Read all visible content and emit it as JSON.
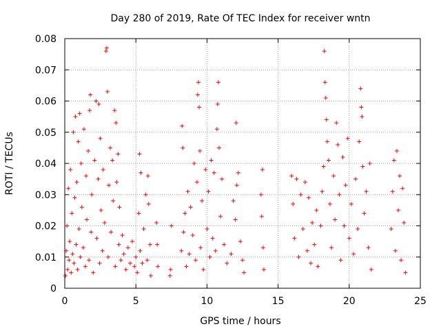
{
  "chart_data": {
    "type": "scatter",
    "title": "Day 280 of 2019, Rate Of TEC Index for receiver wntn",
    "xlabel": "GPS time / hours",
    "ylabel": "ROTI / TECUs",
    "xlim": [
      0,
      25
    ],
    "ylim": [
      0,
      0.08
    ],
    "x_ticks": [
      "0",
      "5",
      "10",
      "15",
      "20",
      "25"
    ],
    "y_ticks": [
      "0",
      "0.01",
      "0.02",
      "0.03",
      "0.04",
      "0.05",
      "0.06",
      "0.07",
      "0.08"
    ],
    "grid": true,
    "marker": "+",
    "color": "#ff0000",
    "series": [
      {
        "values": [
          [
            0.05,
            0.004
          ],
          [
            0.1,
            0.012
          ],
          [
            0.15,
            0.02
          ],
          [
            0.2,
            0.006
          ],
          [
            0.25,
            0.032
          ],
          [
            0.3,
            0.009
          ],
          [
            0.35,
            0.015
          ],
          [
            0.4,
            0.038
          ],
          [
            0.45,
            0.005
          ],
          [
            0.5,
            0.024
          ],
          [
            0.55,
            0.011
          ],
          [
            0.6,
            0.05
          ],
          [
            0.65,
            0.008
          ],
          [
            0.7,
            0.029
          ],
          [
            0.75,
            0.055
          ],
          [
            0.8,
            0.014
          ],
          [
            0.85,
            0.034
          ],
          [
            0.9,
            0.006
          ],
          [
            0.95,
            0.047
          ],
          [
            1.0,
            0.019
          ],
          [
            1.05,
            0.056
          ],
          [
            1.1,
            0.01
          ],
          [
            1.15,
            0.04
          ],
          [
            1.2,
            0.026
          ],
          [
            1.3,
            0.013
          ],
          [
            1.35,
            0.051
          ],
          [
            1.45,
            0.007
          ],
          [
            1.5,
            0.036
          ],
          [
            1.55,
            0.022
          ],
          [
            1.65,
            0.044
          ],
          [
            1.7,
            0.009
          ],
          [
            1.75,
            0.057
          ],
          [
            1.8,
            0.062
          ],
          [
            1.85,
            0.018
          ],
          [
            1.9,
            0.03
          ],
          [
            2.0,
            0.005
          ],
          [
            2.1,
            0.041
          ],
          [
            2.2,
            0.06
          ],
          [
            2.25,
            0.016
          ],
          [
            2.35,
            0.035
          ],
          [
            2.4,
            0.059
          ],
          [
            2.45,
            0.008
          ],
          [
            2.5,
            0.048
          ],
          [
            2.55,
            0.025
          ],
          [
            2.65,
            0.012
          ],
          [
            2.7,
            0.038
          ],
          [
            2.8,
            0.021
          ],
          [
            2.9,
            0.076
          ],
          [
            2.95,
            0.077
          ],
          [
            3.0,
            0.063
          ],
          [
            3.05,
            0.01
          ],
          [
            3.1,
            0.033
          ],
          [
            3.2,
            0.045
          ],
          [
            3.25,
            0.018
          ],
          [
            3.35,
            0.041
          ],
          [
            3.4,
            0.028
          ],
          [
            3.5,
            0.057
          ],
          [
            3.55,
            0.007
          ],
          [
            3.6,
            0.053
          ],
          [
            3.65,
            0.034
          ],
          [
            3.75,
            0.043
          ],
          [
            3.8,
            0.014
          ],
          [
            3.85,
            0.026
          ],
          [
            3.95,
            0.009
          ],
          [
            4.05,
            0.017
          ],
          [
            4.15,
            0.011
          ],
          [
            4.3,
            0.006
          ],
          [
            4.45,
            0.013
          ],
          [
            4.6,
            0.008
          ],
          [
            4.75,
            0.015
          ],
          [
            4.9,
            0.007
          ],
          [
            5.0,
            0.01
          ],
          [
            5.1,
            0.005
          ],
          [
            5.2,
            0.024
          ],
          [
            5.25,
            0.043
          ],
          [
            5.3,
            0.012
          ],
          [
            5.35,
            0.037
          ],
          [
            5.45,
            0.008
          ],
          [
            5.55,
            0.019
          ],
          [
            5.7,
            0.03
          ],
          [
            5.8,
            0.009
          ],
          [
            5.85,
            0.036
          ],
          [
            5.9,
            0.027
          ],
          [
            6.0,
            0.014
          ],
          [
            6.05,
            0.004
          ],
          [
            6.45,
            0.021
          ],
          [
            6.5,
            0.014
          ],
          [
            6.55,
            0.007
          ],
          [
            7.4,
            0.004
          ],
          [
            7.45,
            0.006
          ],
          [
            7.5,
            0.02
          ],
          [
            8.2,
            0.012
          ],
          [
            8.25,
            0.052
          ],
          [
            8.3,
            0.045
          ],
          [
            8.35,
            0.018
          ],
          [
            8.45,
            0.024
          ],
          [
            8.55,
            0.007
          ],
          [
            8.65,
            0.031
          ],
          [
            8.75,
            0.011
          ],
          [
            8.85,
            0.026
          ],
          [
            9.0,
            0.017
          ],
          [
            9.1,
            0.04
          ],
          [
            9.2,
            0.009
          ],
          [
            9.3,
            0.034
          ],
          [
            9.35,
            0.062
          ],
          [
            9.4,
            0.066
          ],
          [
            9.45,
            0.058
          ],
          [
            9.5,
            0.044
          ],
          [
            9.55,
            0.013
          ],
          [
            9.65,
            0.028
          ],
          [
            9.75,
            0.006
          ],
          [
            9.9,
            0.038
          ],
          [
            10.0,
            0.019
          ],
          [
            10.1,
            0.031
          ],
          [
            10.2,
            0.01
          ],
          [
            10.3,
            0.041
          ],
          [
            10.4,
            0.016
          ],
          [
            10.5,
            0.037
          ],
          [
            10.6,
            0.012
          ],
          [
            10.7,
            0.051
          ],
          [
            10.75,
            0.059
          ],
          [
            10.8,
            0.066
          ],
          [
            10.85,
            0.045
          ],
          [
            10.95,
            0.023
          ],
          [
            11.05,
            0.035
          ],
          [
            11.2,
            0.014
          ],
          [
            11.4,
            0.008
          ],
          [
            11.7,
            0.011
          ],
          [
            11.85,
            0.028
          ],
          [
            12.0,
            0.022
          ],
          [
            12.05,
            0.053
          ],
          [
            12.1,
            0.033
          ],
          [
            12.2,
            0.037
          ],
          [
            12.35,
            0.015
          ],
          [
            12.5,
            0.009
          ],
          [
            12.6,
            0.005
          ],
          [
            13.8,
            0.03
          ],
          [
            13.85,
            0.023
          ],
          [
            13.9,
            0.038
          ],
          [
            13.95,
            0.013
          ],
          [
            14.0,
            0.006
          ],
          [
            15.95,
            0.036
          ],
          [
            16.05,
            0.027
          ],
          [
            16.15,
            0.016
          ],
          [
            16.3,
            0.035
          ],
          [
            16.45,
            0.01
          ],
          [
            16.6,
            0.03
          ],
          [
            16.75,
            0.019
          ],
          [
            16.9,
            0.034
          ],
          [
            17.05,
            0.012
          ],
          [
            17.15,
            0.029
          ],
          [
            17.3,
            0.008
          ],
          [
            17.4,
            0.021
          ],
          [
            17.55,
            0.014
          ],
          [
            17.7,
            0.025
          ],
          [
            17.8,
            0.007
          ],
          [
            18.0,
            0.02
          ],
          [
            18.1,
            0.031
          ],
          [
            18.2,
            0.039
          ],
          [
            18.25,
            0.076
          ],
          [
            18.3,
            0.066
          ],
          [
            18.35,
            0.061
          ],
          [
            18.4,
            0.054
          ],
          [
            18.45,
            0.047
          ],
          [
            18.55,
            0.041
          ],
          [
            18.65,
            0.027
          ],
          [
            18.75,
            0.013
          ],
          [
            18.9,
            0.036
          ],
          [
            19.0,
            0.022
          ],
          [
            19.1,
            0.053
          ],
          [
            19.2,
            0.046
          ],
          [
            19.3,
            0.03
          ],
          [
            19.4,
            0.009
          ],
          [
            19.55,
            0.042
          ],
          [
            19.65,
            0.02
          ],
          [
            19.75,
            0.033
          ],
          [
            19.9,
            0.048
          ],
          [
            20.0,
            0.016
          ],
          [
            20.15,
            0.027
          ],
          [
            20.3,
            0.011
          ],
          [
            20.45,
            0.035
          ],
          [
            20.6,
            0.019
          ],
          [
            20.7,
            0.047
          ],
          [
            20.8,
            0.064
          ],
          [
            20.85,
            0.058
          ],
          [
            20.9,
            0.055
          ],
          [
            20.95,
            0.039
          ],
          [
            21.05,
            0.024
          ],
          [
            21.2,
            0.031
          ],
          [
            21.35,
            0.013
          ],
          [
            21.45,
            0.04
          ],
          [
            21.55,
            0.006
          ],
          [
            22.95,
            0.019
          ],
          [
            23.05,
            0.031
          ],
          [
            23.15,
            0.041
          ],
          [
            23.25,
            0.012
          ],
          [
            23.35,
            0.044
          ],
          [
            23.45,
            0.025
          ],
          [
            23.55,
            0.036
          ],
          [
            23.65,
            0.009
          ],
          [
            23.75,
            0.032
          ],
          [
            23.85,
            0.021
          ],
          [
            23.95,
            0.005
          ]
        ]
      }
    ]
  }
}
